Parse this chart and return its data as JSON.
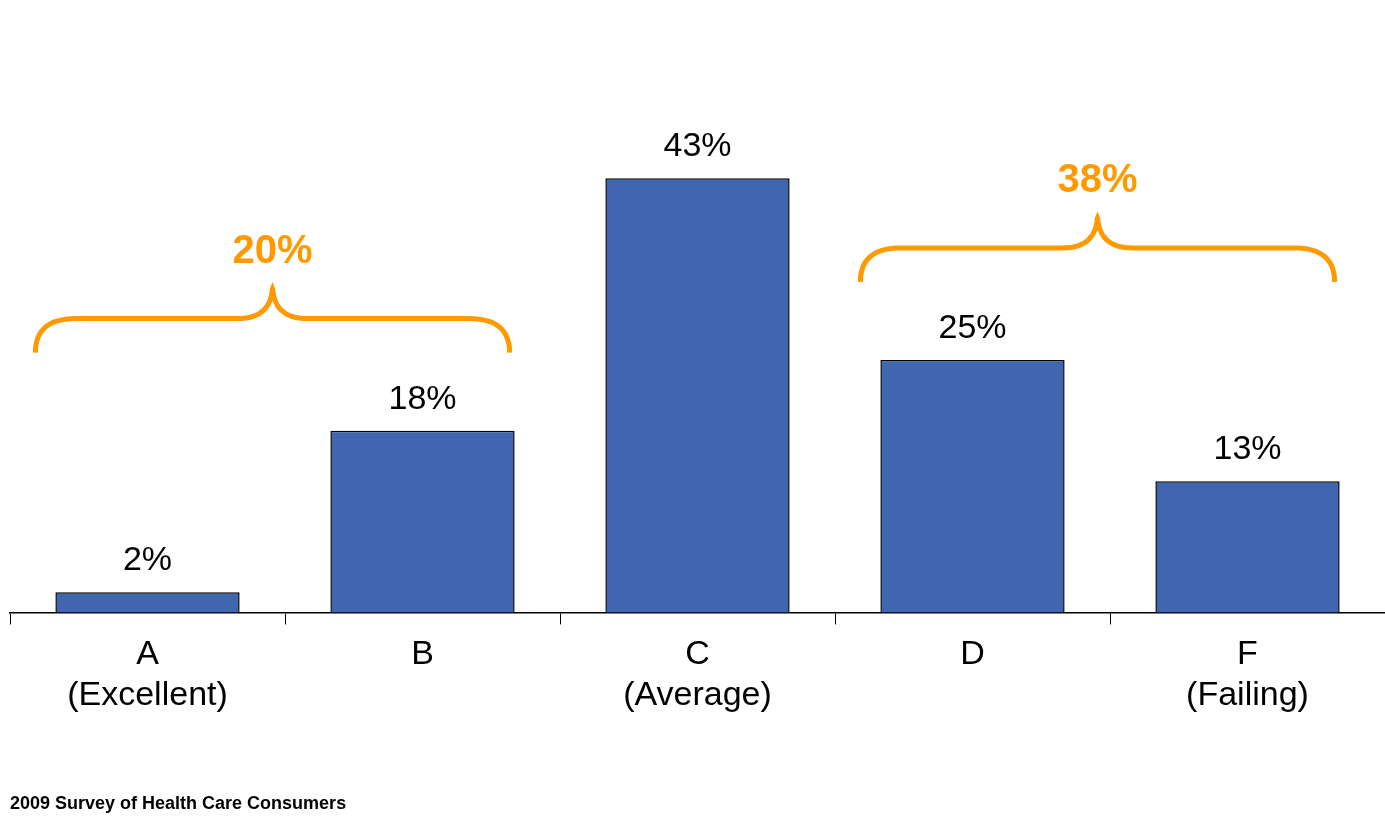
{
  "chart_data": {
    "type": "bar",
    "categories": [
      "A\n(Excellent)",
      "B",
      "C\n(Average)",
      "D",
      "F\n(Failing)"
    ],
    "values": [
      2,
      18,
      43,
      25,
      13
    ],
    "color": "#4166b0",
    "value_labels": [
      "2%",
      "18%",
      "43%",
      "25%",
      "13%"
    ],
    "annotations": [
      "20%",
      "38%",
      "2009 Survey of Health Care Consumers"
    ]
  }
}
